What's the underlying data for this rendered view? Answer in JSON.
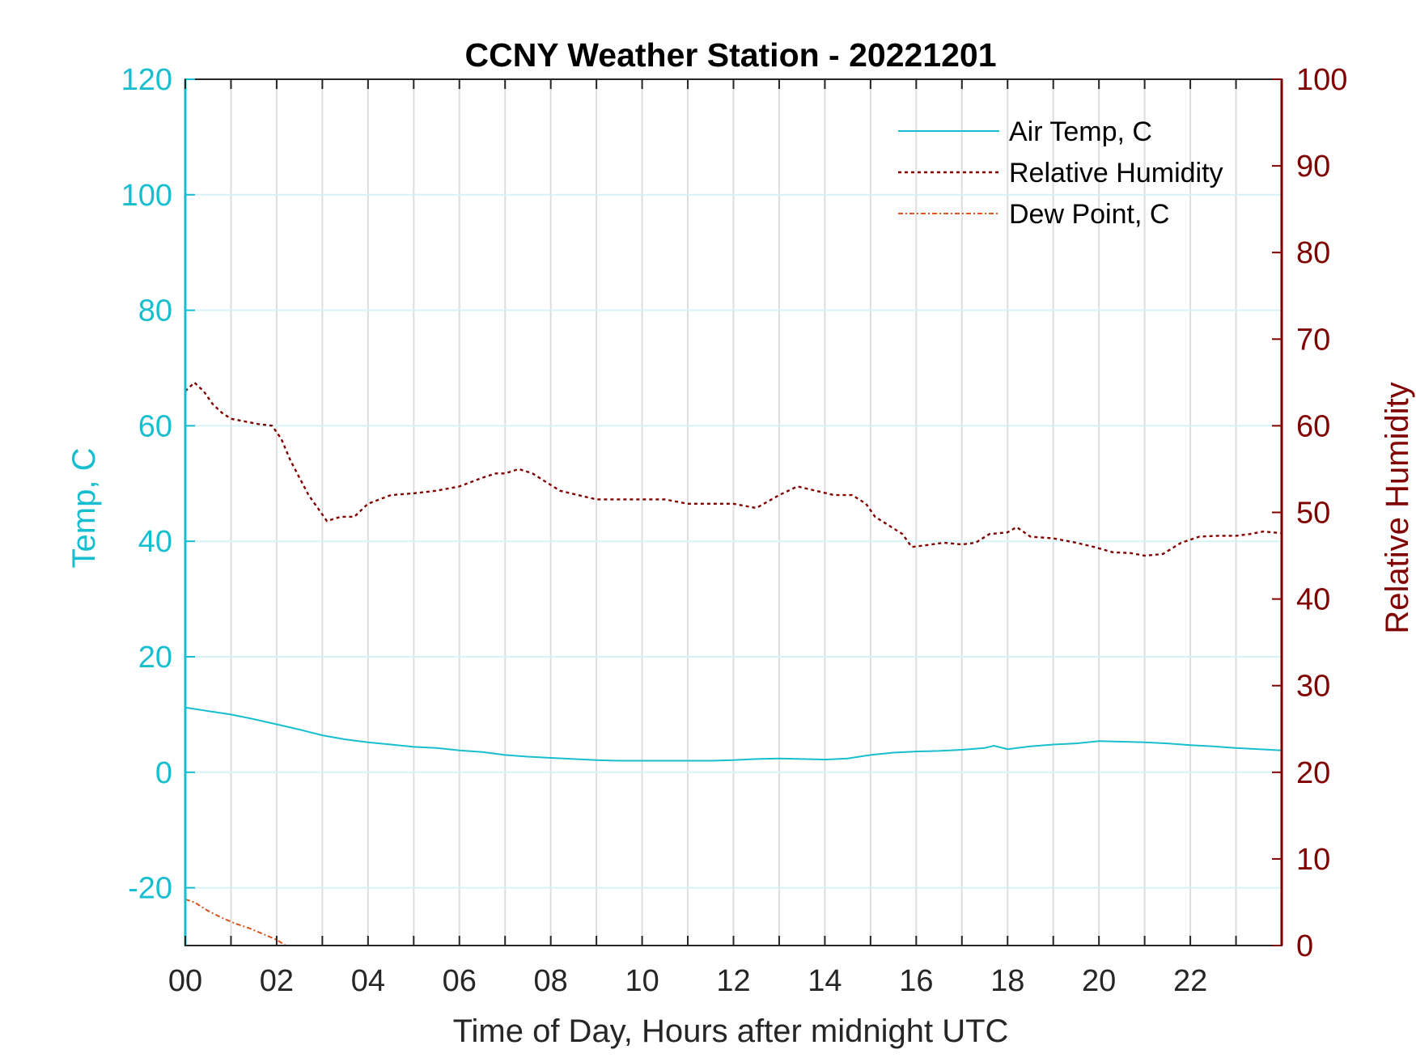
{
  "colors": {
    "air_temp": "#17BECF",
    "relative_humidity": "#800000",
    "dew_point": "#D95319",
    "grid": "#DDDDDD",
    "hgrid": "#D6F3F7",
    "axis": "#262626"
  },
  "chart_data": {
    "type": "line",
    "title": "CCNY Weather Station - 20221201",
    "xlabel": "Time of Day, Hours after midnight UTC",
    "ylabel_left": "Temp, C",
    "ylabel_right": "Relative Humidity",
    "xlim": [
      0,
      24
    ],
    "ylim_left": [
      -30,
      120
    ],
    "ylim_right": [
      0,
      100
    ],
    "xticks": [
      0,
      2,
      4,
      6,
      8,
      10,
      12,
      14,
      16,
      18,
      20,
      22
    ],
    "xtick_labels": [
      "00",
      "02",
      "04",
      "06",
      "08",
      "10",
      "12",
      "14",
      "16",
      "18",
      "20",
      "22"
    ],
    "yticks_left": [
      -20,
      0,
      20,
      40,
      60,
      80,
      100,
      120
    ],
    "ytick_labels_left": [
      "-20",
      "0",
      "20",
      "40",
      "60",
      "80",
      "100",
      "120"
    ],
    "yticks_right": [
      0,
      10,
      20,
      30,
      40,
      50,
      60,
      70,
      80,
      90,
      100
    ],
    "ytick_labels_right": [
      "0",
      "10",
      "20",
      "30",
      "40",
      "50",
      "60",
      "70",
      "80",
      "90",
      "100"
    ],
    "grid": true,
    "legend_position": "top-right",
    "series": [
      {
        "name": "Air Temp, C",
        "axis": "left",
        "style": "solid",
        "x": [
          0,
          0.5,
          1,
          1.5,
          2,
          2.5,
          3,
          3.5,
          4,
          4.5,
          5,
          5.5,
          6,
          6.5,
          7,
          7.5,
          8,
          8.5,
          9,
          9.5,
          10,
          10.5,
          11,
          11.5,
          12,
          12.5,
          13,
          13.5,
          14,
          14.5,
          15,
          15.5,
          16,
          16.5,
          17,
          17.5,
          17.7,
          18,
          18.5,
          19,
          19.5,
          20,
          20.5,
          21,
          21.5,
          22,
          22.5,
          23,
          23.5,
          24
        ],
        "y": [
          11.2,
          10.6,
          10.0,
          9.2,
          8.3,
          7.4,
          6.4,
          5.7,
          5.2,
          4.8,
          4.4,
          4.2,
          3.8,
          3.5,
          3.0,
          2.7,
          2.5,
          2.3,
          2.1,
          2.0,
          2.0,
          2.0,
          2.0,
          2.0,
          2.1,
          2.3,
          2.4,
          2.3,
          2.2,
          2.4,
          3.0,
          3.4,
          3.6,
          3.7,
          3.9,
          4.2,
          4.6,
          4.0,
          4.5,
          4.8,
          5.0,
          5.4,
          5.3,
          5.2,
          5.0,
          4.7,
          4.5,
          4.2,
          4.0,
          3.8
        ]
      },
      {
        "name": "Relative Humidity",
        "axis": "right",
        "style": "dotted",
        "x": [
          0,
          0.2,
          0.4,
          0.6,
          0.8,
          1.0,
          1.3,
          1.6,
          1.9,
          2.1,
          2.3,
          2.5,
          2.7,
          2.9,
          3.1,
          3.4,
          3.7,
          4.0,
          4.5,
          5.0,
          5.5,
          6.0,
          6.5,
          6.8,
          7.0,
          7.3,
          7.6,
          7.9,
          8.2,
          8.6,
          9.0,
          9.5,
          10.0,
          10.5,
          11.0,
          11.5,
          12.0,
          12.5,
          13.0,
          13.4,
          13.8,
          14.2,
          14.6,
          14.9,
          15.1,
          15.4,
          15.7,
          15.9,
          16.2,
          16.6,
          17.0,
          17.3,
          17.6,
          18.0,
          18.2,
          18.5,
          19.0,
          19.5,
          19.9,
          20.3,
          20.7,
          21.0,
          21.4,
          21.8,
          22.2,
          22.6,
          23.0,
          23.3,
          23.6,
          24.0
        ],
        "y": [
          64,
          65,
          64,
          62.5,
          61.5,
          60.8,
          60.5,
          60.2,
          60,
          58.5,
          56,
          54,
          52,
          50.5,
          49,
          49.5,
          49.5,
          51,
          52,
          52.2,
          52.5,
          53,
          54,
          54.5,
          54.5,
          55,
          54.5,
          53.5,
          52.5,
          52,
          51.5,
          51.5,
          51.5,
          51.5,
          51,
          51,
          51,
          50.5,
          52,
          53,
          52.5,
          52,
          52,
          51,
          49.5,
          48.5,
          47.5,
          46,
          46.2,
          46.5,
          46.3,
          46.5,
          47.5,
          47.7,
          48.3,
          47.2,
          47,
          46.5,
          46,
          45.4,
          45.3,
          45,
          45.2,
          46.5,
          47.2,
          47.3,
          47.3,
          47.5,
          47.8,
          47.6
        ]
      },
      {
        "name": "Dew Point, C",
        "axis": "left",
        "style": "dashdot",
        "x": [
          0,
          0.2,
          0.5,
          0.8,
          1.1,
          1.4,
          1.7,
          2.0,
          2.2
        ],
        "y": [
          -22,
          -22.5,
          -24,
          -25.2,
          -26.2,
          -27,
          -28,
          -29,
          -30
        ]
      }
    ]
  }
}
